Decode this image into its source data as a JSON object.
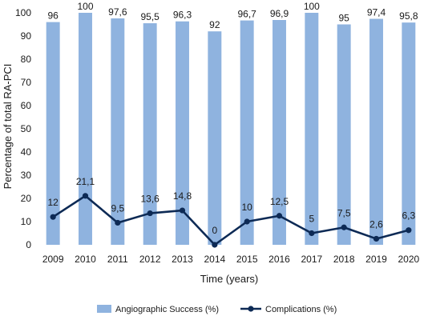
{
  "chart_data": {
    "type": "bar",
    "title": "",
    "xlabel": "Time (years)",
    "ylabel": "Percentage of total RA-PCI",
    "ylim": [
      0,
      100
    ],
    "yticks": [
      0,
      10,
      20,
      30,
      40,
      50,
      60,
      70,
      80,
      90,
      100
    ],
    "categories": [
      "2009",
      "2010",
      "2011",
      "2012",
      "2013",
      "2014",
      "2015",
      "2016",
      "2017",
      "2018",
      "2019",
      "2020"
    ],
    "series": [
      {
        "name": "Angiographic Success (%)",
        "type": "bar",
        "color": "#8fb3df",
        "values": [
          96,
          100,
          97.6,
          95.5,
          96.3,
          92,
          96.7,
          96.9,
          100,
          95,
          97.4,
          95.8
        ],
        "labels": [
          "96",
          "100",
          "97,6",
          "95,5",
          "96,3",
          "92",
          "96,7",
          "96,9",
          "100",
          "95",
          "97,4",
          "95,8"
        ]
      },
      {
        "name": "Complications (%)",
        "type": "line",
        "color": "#0d2a55",
        "values": [
          12,
          21.1,
          9.5,
          13.6,
          14.8,
          0,
          10,
          12.5,
          5,
          7.5,
          2.6,
          6.3
        ],
        "labels": [
          "12",
          "21,1",
          "9,5",
          "13,6",
          "14,8",
          "0",
          "10",
          "12,5",
          "5",
          "7,5",
          "2,6",
          "6,3"
        ]
      }
    ],
    "grid": false,
    "legend": "bottom"
  }
}
